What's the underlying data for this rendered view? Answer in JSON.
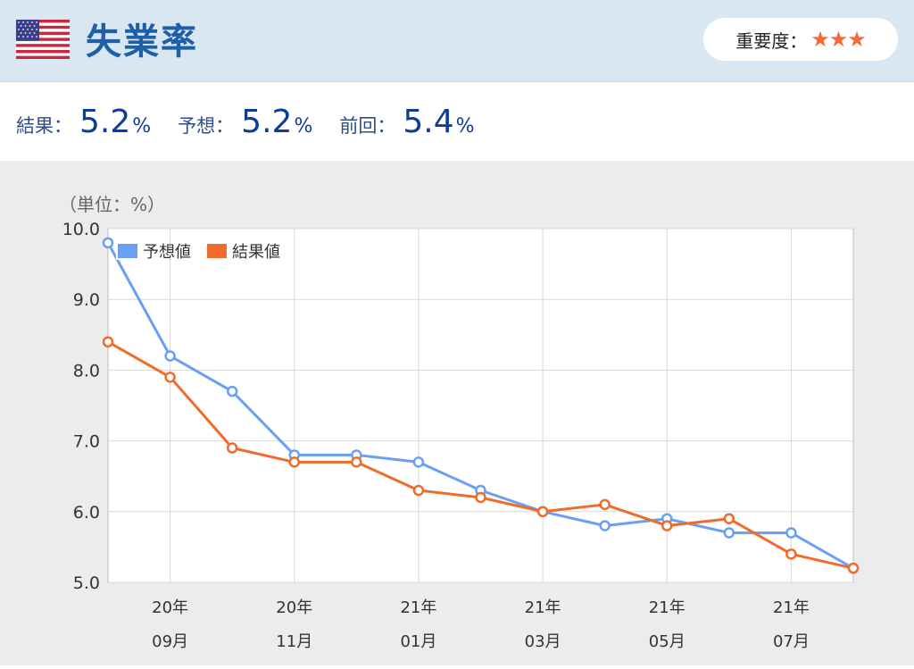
{
  "header": {
    "title": "失業率",
    "importance_label": "重要度：",
    "importance_stars": "★★★",
    "flag_icon": "us-flag-icon",
    "background_color": "#d9e7f2",
    "title_color": "#1f5fa8",
    "star_color": "#f26a39"
  },
  "stats": [
    {
      "label": "結果：",
      "value": "5.2",
      "unit": "%"
    },
    {
      "label": "予想：",
      "value": "5.2",
      "unit": "%"
    },
    {
      "label": "前回：",
      "value": "5.4",
      "unit": "%"
    }
  ],
  "chart_data": {
    "type": "line",
    "unit_label": "（単位：%）",
    "ylim": [
      5.0,
      10.0
    ],
    "yticks": [
      "10.0",
      "9.0",
      "8.0",
      "7.0",
      "6.0",
      "5.0"
    ],
    "ytick_values": [
      10.0,
      9.0,
      8.0,
      7.0,
      6.0,
      5.0
    ],
    "xlim": [
      0,
      12
    ],
    "x": [
      0,
      1,
      2,
      3,
      4,
      5,
      6,
      7,
      8,
      9,
      10,
      11,
      12
    ],
    "xticks": [
      {
        "x": 1,
        "year": "20年",
        "month": "09月"
      },
      {
        "x": 3,
        "year": "20年",
        "month": "11月"
      },
      {
        "x": 5,
        "year": "21年",
        "month": "01月"
      },
      {
        "x": 7,
        "year": "21年",
        "month": "03月"
      },
      {
        "x": 9,
        "year": "21年",
        "month": "05月"
      },
      {
        "x": 11,
        "year": "21年",
        "month": "07月"
      }
    ],
    "legend_position": "top-left",
    "grid": true,
    "series": [
      {
        "name": "予想値",
        "color": "#6a9ff5",
        "values": [
          9.8,
          8.2,
          7.7,
          6.8,
          6.8,
          6.7,
          6.3,
          6.0,
          5.8,
          5.9,
          5.7,
          5.7,
          5.2
        ]
      },
      {
        "name": "結果値",
        "color": "#ef6c2a",
        "values": [
          8.4,
          7.9,
          6.9,
          6.7,
          6.7,
          6.3,
          6.2,
          6.0,
          6.1,
          5.8,
          5.9,
          5.4,
          5.2
        ]
      }
    ]
  }
}
